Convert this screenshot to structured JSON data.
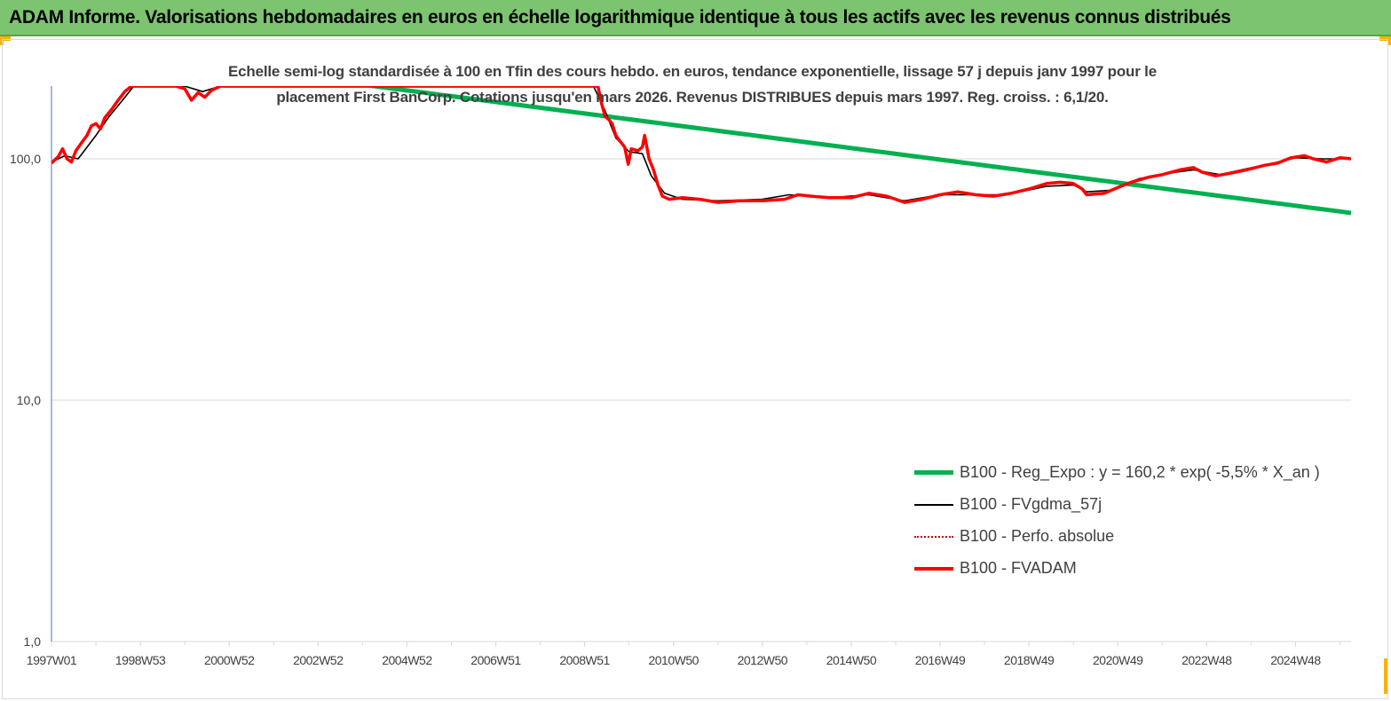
{
  "header": {
    "title": "ADAM Informe. Valorisations hebdomadaires en euros en échelle logarithmique identique à tous les actifs avec les revenus connus distribués"
  },
  "colors": {
    "header_bg": "#7dc471",
    "accent_corner": "#f5b400",
    "trend_green": "#00b050",
    "fvadam_red": "#ff0000",
    "ma_black": "#000000",
    "perf_dotted_red": "#c00000",
    "axis_blue": "#4472c4",
    "grid": "#d9d9d9",
    "text": "#404040"
  },
  "chart_data": {
    "type": "line",
    "title_lines": [
      "Echelle semi-log standardisée à 100 en Tfin des cours hebdo. en euros, tendance exponentielle, lissage 57 j depuis janv 1997 pour le",
      "placement First BanCorp. Cotations jusqu'en mars 2026. Revenus DISTRIBUES depuis mars 1997. Reg. croiss. : 6,1/20."
    ],
    "y_scale": "log",
    "ylim": [
      1,
      200
    ],
    "y_ticks": [
      {
        "value": 100,
        "label": "100,0"
      },
      {
        "value": 10,
        "label": "10,0"
      },
      {
        "value": 1,
        "label": "1,0"
      }
    ],
    "xlim": [
      1997.0,
      2026.25
    ],
    "x_ticks": [
      {
        "year": 1997.0,
        "label": "1997W01"
      },
      {
        "year": 1999.0,
        "label": "1998W53"
      },
      {
        "year": 2001.0,
        "label": "2000W52"
      },
      {
        "year": 2003.0,
        "label": "2002W52"
      },
      {
        "year": 2005.0,
        "label": "2004W52"
      },
      {
        "year": 2007.0,
        "label": "2006W51"
      },
      {
        "year": 2009.0,
        "label": "2008W51"
      },
      {
        "year": 2011.0,
        "label": "2010W50"
      },
      {
        "year": 2013.0,
        "label": "2012W50"
      },
      {
        "year": 2015.0,
        "label": "2014W50"
      },
      {
        "year": 2017.0,
        "label": "2016W49"
      },
      {
        "year": 2019.0,
        "label": "2018W49"
      },
      {
        "year": 2021.0,
        "label": "2020W49"
      },
      {
        "year": 2023.0,
        "label": "2022W48"
      },
      {
        "year": 2025.0,
        "label": "2024W48"
      }
    ],
    "grid": true,
    "legend_position": "bottom-right",
    "series": [
      {
        "name": "B100 - Reg_Expo : y = 160,2 * exp( -5,5% *  X_an )",
        "color": "#00b050",
        "style": "solid-thick",
        "kind": "exponential",
        "a": 160.2,
        "rate": -0.055,
        "x0": 2008.3
      },
      {
        "name": "B100 - FVgdma_57j",
        "color": "#000000",
        "style": "solid-thin",
        "points": [
          [
            1997.0,
            97
          ],
          [
            1997.3,
            103
          ],
          [
            1997.6,
            100
          ],
          [
            1998.0,
            125
          ],
          [
            1998.3,
            150
          ],
          [
            1998.6,
            175
          ],
          [
            1998.85,
            200
          ],
          [
            2000.0,
            200
          ],
          [
            2000.4,
            190
          ],
          [
            2000.8,
            200
          ],
          [
            2001.2,
            200
          ],
          [
            2009.2,
            200
          ],
          [
            2009.45,
            160
          ],
          [
            2009.7,
            122
          ],
          [
            2010.0,
            107
          ],
          [
            2010.3,
            105
          ],
          [
            2010.5,
            85
          ],
          [
            2010.8,
            72
          ],
          [
            2011.2,
            68
          ],
          [
            2012.0,
            67
          ],
          [
            2013.0,
            68
          ],
          [
            2013.6,
            71
          ],
          [
            2014.5,
            69
          ],
          [
            2015.4,
            71
          ],
          [
            2016.2,
            67
          ],
          [
            2017.0,
            71
          ],
          [
            2017.8,
            71
          ],
          [
            2018.5,
            71
          ],
          [
            2019.4,
            77
          ],
          [
            2020.0,
            78
          ],
          [
            2020.3,
            73
          ],
          [
            2020.8,
            74
          ],
          [
            2021.5,
            83
          ],
          [
            2022.3,
            88
          ],
          [
            2022.7,
            90
          ],
          [
            2023.3,
            86
          ],
          [
            2023.9,
            91
          ],
          [
            2024.5,
            96
          ],
          [
            2025.0,
            101
          ],
          [
            2025.6,
            100
          ],
          [
            2026.25,
            100
          ]
        ]
      },
      {
        "name": "B100 - Perfo. absolue",
        "color": "#c00000",
        "style": "dotted",
        "points": []
      },
      {
        "name": "B100 - FVADAM",
        "color": "#ff0000",
        "style": "solid-thick",
        "points": [
          [
            1997.0,
            96
          ],
          [
            1997.15,
            102
          ],
          [
            1997.25,
            110
          ],
          [
            1997.35,
            100
          ],
          [
            1997.45,
            97
          ],
          [
            1997.55,
            108
          ],
          [
            1997.7,
            118
          ],
          [
            1997.8,
            125
          ],
          [
            1997.9,
            137
          ],
          [
            1998.0,
            140
          ],
          [
            1998.1,
            133
          ],
          [
            1998.2,
            148
          ],
          [
            1998.35,
            160
          ],
          [
            1998.5,
            175
          ],
          [
            1998.65,
            190
          ],
          [
            1998.8,
            200
          ],
          [
            1999.8,
            200
          ],
          [
            2000.0,
            195
          ],
          [
            2000.15,
            175
          ],
          [
            2000.3,
            188
          ],
          [
            2000.45,
            180
          ],
          [
            2000.6,
            192
          ],
          [
            2000.8,
            200
          ],
          [
            2009.3,
            200
          ],
          [
            2009.38,
            170
          ],
          [
            2009.46,
            150
          ],
          [
            2009.55,
            145
          ],
          [
            2009.62,
            140
          ],
          [
            2009.7,
            125
          ],
          [
            2009.8,
            118
          ],
          [
            2009.9,
            112
          ],
          [
            2009.98,
            95
          ],
          [
            2010.05,
            110
          ],
          [
            2010.2,
            108
          ],
          [
            2010.3,
            112
          ],
          [
            2010.35,
            125
          ],
          [
            2010.45,
            100
          ],
          [
            2010.55,
            90
          ],
          [
            2010.65,
            78
          ],
          [
            2010.75,
            70
          ],
          [
            2010.9,
            68
          ],
          [
            2011.2,
            69
          ],
          [
            2011.6,
            68
          ],
          [
            2012.0,
            66
          ],
          [
            2012.5,
            67
          ],
          [
            2013.0,
            67
          ],
          [
            2013.5,
            68
          ],
          [
            2013.8,
            71
          ],
          [
            2014.1,
            70
          ],
          [
            2014.5,
            69
          ],
          [
            2015.0,
            69
          ],
          [
            2015.4,
            72
          ],
          [
            2015.8,
            70
          ],
          [
            2016.2,
            66
          ],
          [
            2016.6,
            68
          ],
          [
            2017.0,
            71
          ],
          [
            2017.4,
            73
          ],
          [
            2017.8,
            71
          ],
          [
            2018.2,
            70
          ],
          [
            2018.6,
            72
          ],
          [
            2019.0,
            75
          ],
          [
            2019.4,
            79
          ],
          [
            2019.7,
            80
          ],
          [
            2020.0,
            79
          ],
          [
            2020.2,
            75
          ],
          [
            2020.3,
            71
          ],
          [
            2020.7,
            72
          ],
          [
            2021.0,
            76
          ],
          [
            2021.3,
            80
          ],
          [
            2021.7,
            84
          ],
          [
            2022.0,
            86
          ],
          [
            2022.4,
            90
          ],
          [
            2022.7,
            92
          ],
          [
            2022.9,
            88
          ],
          [
            2023.2,
            85
          ],
          [
            2023.5,
            87
          ],
          [
            2023.9,
            90
          ],
          [
            2024.3,
            94
          ],
          [
            2024.6,
            96
          ],
          [
            2024.9,
            101
          ],
          [
            2025.2,
            103
          ],
          [
            2025.4,
            100
          ],
          [
            2025.7,
            97
          ],
          [
            2026.0,
            101
          ],
          [
            2026.25,
            100
          ]
        ]
      }
    ]
  }
}
